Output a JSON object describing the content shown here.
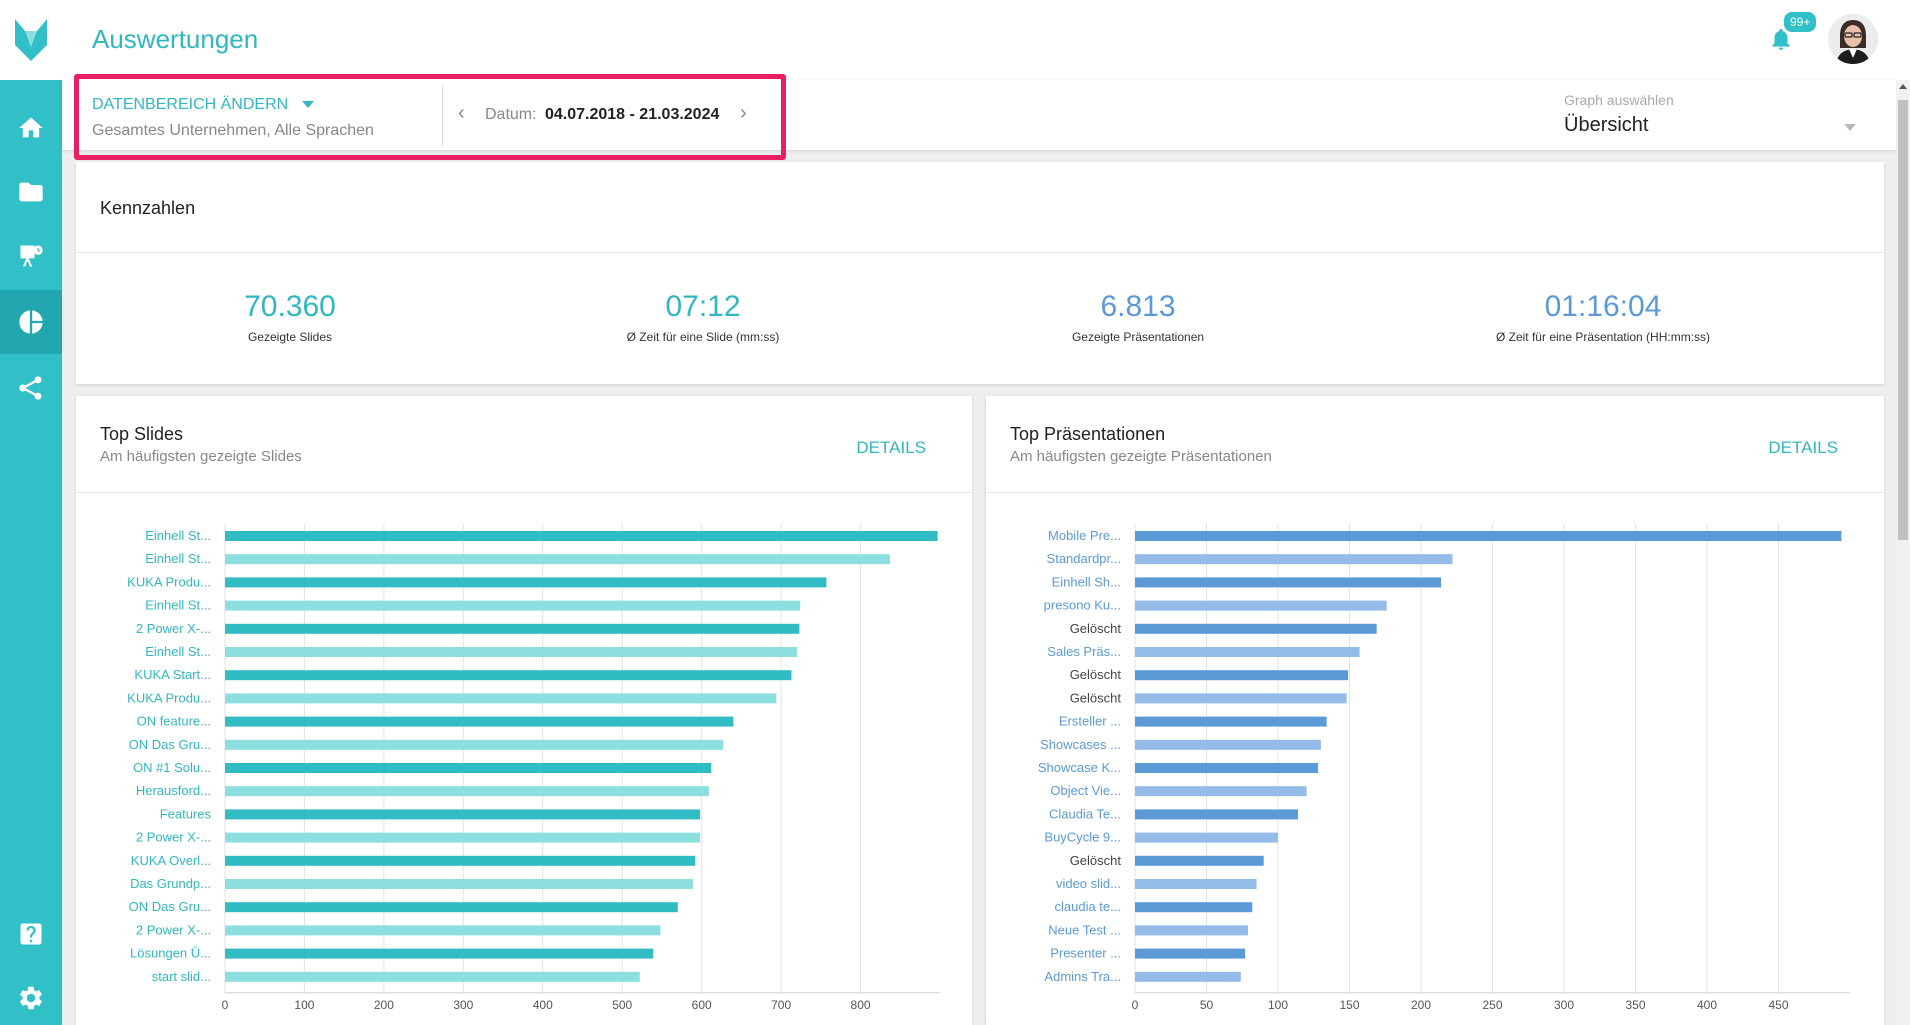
{
  "header": {
    "title": "Auswertungen",
    "notifications_badge": "99+"
  },
  "sidebar": {
    "items": [
      {
        "icon": "home-icon"
      },
      {
        "icon": "folder-icon"
      },
      {
        "icon": "presentation-icon"
      },
      {
        "icon": "pie-chart-icon",
        "active": true
      },
      {
        "icon": "share-icon"
      },
      {
        "icon": "help-icon"
      },
      {
        "icon": "gear-icon"
      }
    ]
  },
  "filter": {
    "range_button": "Datenbereich ändern",
    "range_scope": "Gesamtes Unternehmen, Alle Sprachen",
    "date_label": "Datum:",
    "date_value": "04.07.2018 - 21.03.2024"
  },
  "graph_select": {
    "label": "Graph auswählen",
    "value": "Übersicht"
  },
  "kpis": {
    "title": "Kennzahlen",
    "items": [
      {
        "value": "70.360",
        "label": "Gezeigte Slides"
      },
      {
        "value": "07:12",
        "label": "Ø Zeit für eine Slide (mm:ss)"
      },
      {
        "value": "6.813",
        "label": "Gezeigte Präsentationen"
      },
      {
        "value": "01:16:04",
        "label": "Ø Zeit für eine Präsentation (HH:mm:ss)"
      }
    ]
  },
  "top_slides": {
    "title": "Top Slides",
    "subtitle": "Am häufigsten gezeigte Slides",
    "details": "Details"
  },
  "top_presentations": {
    "title": "Top Präsentationen",
    "subtitle": "Am häufigsten gezeigte Präsentationen",
    "details": "Details"
  },
  "colors": {
    "accent": "#31b7c1",
    "sidebar": "#31c0c8",
    "highlight": "#ea1f63",
    "slides_dark": "#31bcc4",
    "slides_light": "#8ddfdf",
    "pres_dark": "#5b9ad6",
    "pres_light": "#93bde8"
  },
  "chart_data": [
    {
      "type": "bar",
      "orientation": "horizontal",
      "categories": [
        "Einhell St...",
        "Einhell St...",
        "KUKA Produ...",
        "Einhell St...",
        "2 Power X-...",
        "Einhell St...",
        "KUKA Start...",
        "KUKA Produ...",
        "ON feature...",
        "ON Das Gru...",
        "ON #1 Solu...",
        "Herausford...",
        "Features",
        "2 Power X-...",
        "KUKA Overl...",
        "Das Grundp...",
        "ON Das Gru...",
        "2 Power X-...",
        "Lösungen Ü...",
        "start slid..."
      ],
      "values": [
        897,
        837,
        757,
        724,
        723,
        720,
        713,
        694,
        640,
        627,
        612,
        609,
        598,
        598,
        592,
        589,
        570,
        548,
        539,
        522
      ],
      "xticks": [
        0,
        100,
        200,
        300,
        400,
        500,
        600,
        700,
        800
      ],
      "xlim": [
        0,
        900
      ],
      "grid": true
    },
    {
      "type": "bar",
      "orientation": "horizontal",
      "categories": [
        "Mobile Pre...",
        "Standardpr...",
        "Einhell Sh...",
        "presono Ku...",
        "Gelöscht",
        "Sales Präs...",
        "Gelöscht",
        "Gelöscht",
        "Ersteller ...",
        "Showcases ...",
        "Showcase K...",
        "Object Vie...",
        "Claudia Te...",
        "BuyCycle 9...",
        "Gelöscht",
        "video slid...",
        "claudia te...",
        "Neue Test ...",
        "Presenter ...",
        "Admins Tra..."
      ],
      "values": [
        494,
        222,
        214,
        176,
        169,
        157,
        149,
        148,
        134,
        130,
        128,
        120,
        114,
        100,
        90,
        85,
        82,
        79,
        77,
        74
      ],
      "xticks": [
        0,
        50,
        100,
        150,
        200,
        250,
        300,
        350,
        400,
        450
      ],
      "xlim": [
        0,
        500
      ],
      "grid": true
    }
  ]
}
